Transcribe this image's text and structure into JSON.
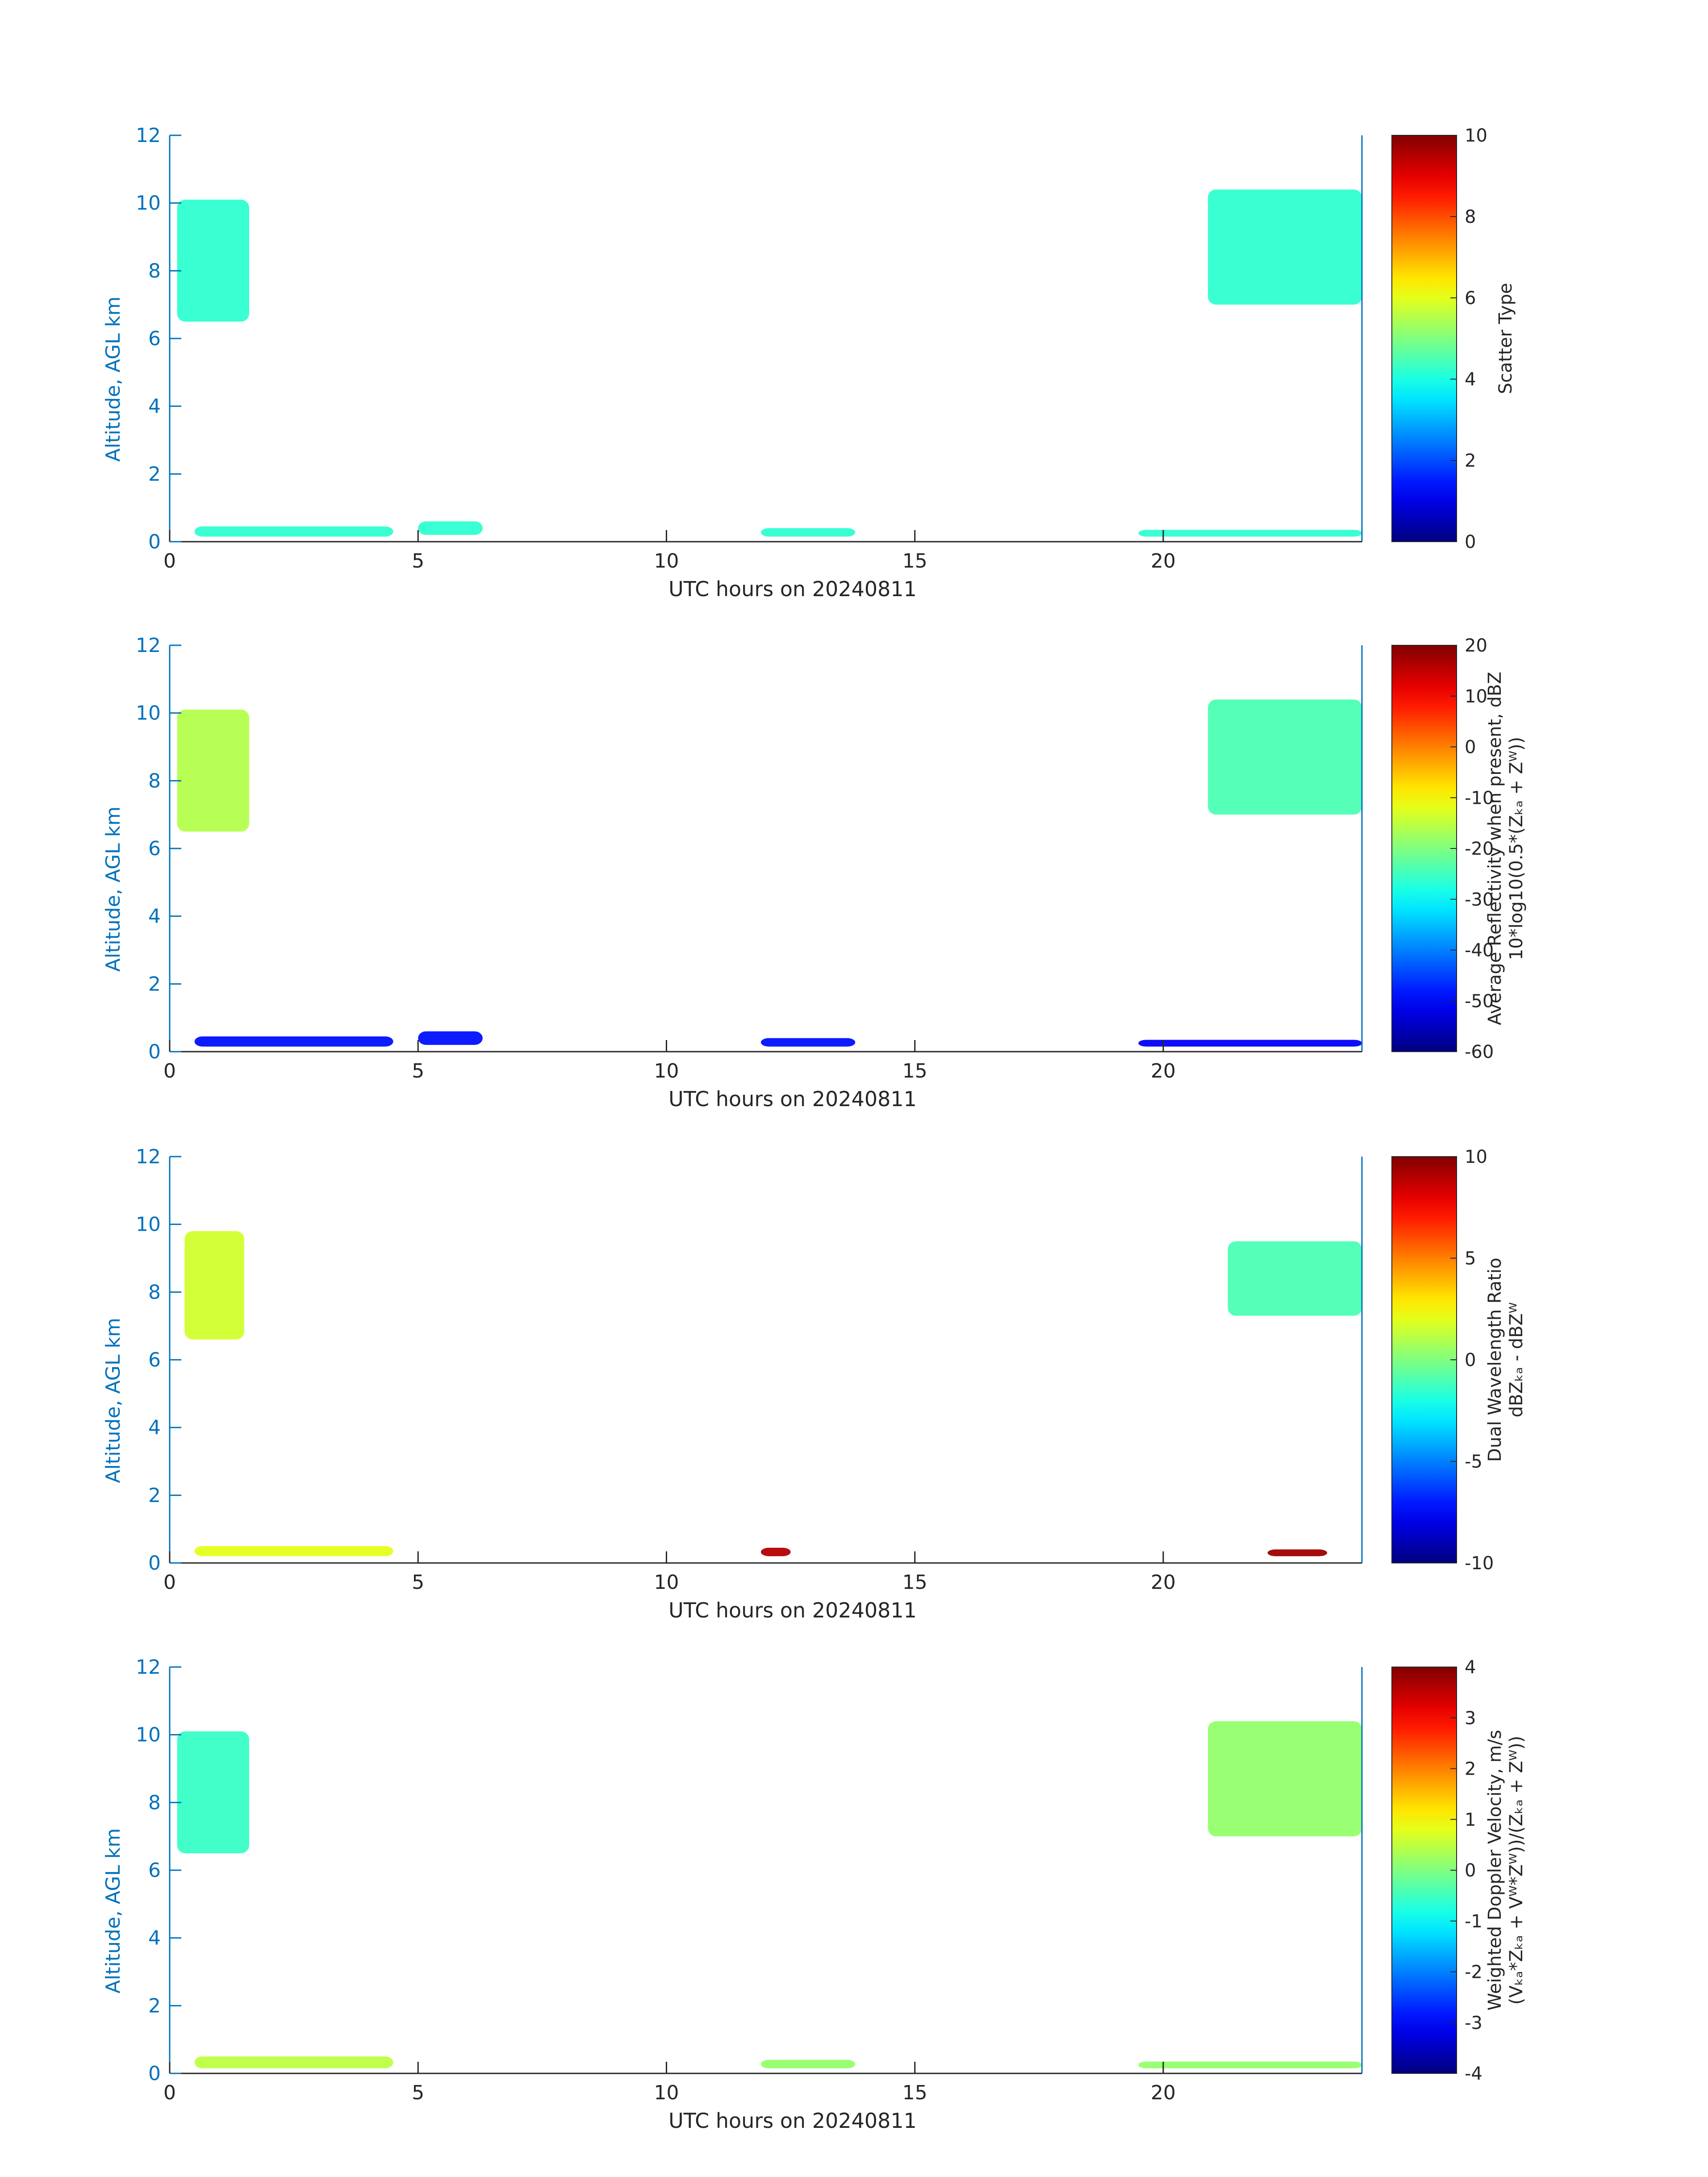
{
  "colors": {
    "axis_blue": "#0072bd",
    "text_dark": "#262626",
    "cloud_cyan": "#40f5d6",
    "deep_blue": "#0a2ee8",
    "pale_green": "#7df29a",
    "yellow_green": "#c8f060",
    "dark_red": "#8b0000"
  },
  "chart_data": [
    {
      "type": "heatmap",
      "title": "",
      "xlabel": "UTC hours on 20240811",
      "ylabel": "Altitude, AGL km",
      "xlim": [
        0,
        24
      ],
      "ylim": [
        0,
        12
      ],
      "x_ticks": [
        "0",
        "5",
        "10",
        "15",
        "20"
      ],
      "y_ticks": [
        "0",
        "2",
        "4",
        "6",
        "8",
        "10",
        "12"
      ],
      "colorbar": {
        "label_lines": [
          "Scatter Type"
        ],
        "range": [
          0,
          10
        ],
        "ticks": [
          "0",
          "2",
          "4",
          "6",
          "8",
          "10"
        ]
      },
      "regions": [
        {
          "t0": 0.15,
          "t1": 1.6,
          "z0": 6.5,
          "z1": 10.1,
          "value_norm": 0.42
        },
        {
          "t0": 20.9,
          "t1": 24.0,
          "z0": 7.0,
          "z1": 10.4,
          "value_norm": 0.42
        },
        {
          "t0": 0.5,
          "t1": 4.5,
          "z0": 0.15,
          "z1": 0.45,
          "value_norm": 0.42
        },
        {
          "t0": 5.0,
          "t1": 6.3,
          "z0": 0.2,
          "z1": 0.6,
          "value_norm": 0.42
        },
        {
          "t0": 11.9,
          "t1": 13.8,
          "z0": 0.15,
          "z1": 0.4,
          "value_norm": 0.42
        },
        {
          "t0": 19.5,
          "t1": 24.0,
          "z0": 0.15,
          "z1": 0.35,
          "value_norm": 0.42
        }
      ]
    },
    {
      "type": "heatmap",
      "title": "",
      "xlabel": "UTC hours on 20240811",
      "ylabel": "Altitude, AGL km",
      "xlim": [
        0,
        24
      ],
      "ylim": [
        0,
        12
      ],
      "x_ticks": [
        "0",
        "5",
        "10",
        "15",
        "20"
      ],
      "y_ticks": [
        "0",
        "2",
        "4",
        "6",
        "8",
        "10",
        "12"
      ],
      "colorbar": {
        "label_lines": [
          "Average Reflectivity when present, dBZ",
          "10*log10(0.5*(Zₖₐ + Zᵂ))"
        ],
        "range": [
          -60,
          20
        ],
        "ticks": [
          "-60",
          "-50",
          "-40",
          "-30",
          "-20",
          "-10",
          "0",
          "10",
          "20"
        ]
      },
      "regions": [
        {
          "t0": 0.15,
          "t1": 1.6,
          "z0": 6.5,
          "z1": 10.1,
          "value_norm": 0.55
        },
        {
          "t0": 20.9,
          "t1": 24.0,
          "z0": 7.0,
          "z1": 10.4,
          "value_norm": 0.45
        },
        {
          "t0": 0.5,
          "t1": 4.5,
          "z0": 0.15,
          "z1": 0.45,
          "value_norm": 0.14
        },
        {
          "t0": 5.0,
          "t1": 6.3,
          "z0": 0.2,
          "z1": 0.6,
          "value_norm": 0.14
        },
        {
          "t0": 11.9,
          "t1": 13.8,
          "z0": 0.15,
          "z1": 0.4,
          "value_norm": 0.14
        },
        {
          "t0": 19.5,
          "t1": 24.0,
          "z0": 0.15,
          "z1": 0.35,
          "value_norm": 0.12
        }
      ]
    },
    {
      "type": "heatmap",
      "title": "",
      "xlabel": "UTC hours on 20240811",
      "ylabel": "Altitude, AGL km",
      "xlim": [
        0,
        24
      ],
      "ylim": [
        0,
        12
      ],
      "x_ticks": [
        "0",
        "5",
        "10",
        "15",
        "20"
      ],
      "y_ticks": [
        "0",
        "2",
        "4",
        "6",
        "8",
        "10",
        "12"
      ],
      "colorbar": {
        "label_lines": [
          "Dual Wavelength Ratio",
          "dBZₖₐ - dBZᵂ"
        ],
        "range": [
          -10,
          10
        ],
        "ticks": [
          "-10",
          "-5",
          "0",
          "5",
          "10"
        ]
      },
      "regions": [
        {
          "t0": 0.3,
          "t1": 1.5,
          "z0": 6.6,
          "z1": 9.8,
          "value_norm": 0.58
        },
        {
          "t0": 21.3,
          "t1": 24.0,
          "z0": 7.3,
          "z1": 9.5,
          "value_norm": 0.45
        },
        {
          "t0": 0.5,
          "t1": 4.5,
          "z0": 0.2,
          "z1": 0.5,
          "value_norm": 0.6
        },
        {
          "t0": 11.9,
          "t1": 12.5,
          "z0": 0.2,
          "z1": 0.45,
          "value_norm": 0.95
        },
        {
          "t0": 22.1,
          "t1": 23.3,
          "z0": 0.2,
          "z1": 0.4,
          "value_norm": 0.97
        }
      ]
    },
    {
      "type": "heatmap",
      "title": "",
      "xlabel": "UTC hours on 20240811",
      "ylabel": "Altitude, AGL km",
      "xlim": [
        0,
        24
      ],
      "ylim": [
        0,
        12
      ],
      "x_ticks": [
        "0",
        "5",
        "10",
        "15",
        "20"
      ],
      "y_ticks": [
        "0",
        "2",
        "4",
        "6",
        "8",
        "10",
        "12"
      ],
      "colorbar": {
        "label_lines": [
          "Weighted Doppler Velocity, m/s",
          "(Vₖₐ*Zₖₐ + Vᵂ*Zᵂ))/(Zₖₐ + Zᵂ))"
        ],
        "range": [
          -4,
          4
        ],
        "ticks": [
          "-4",
          "-3",
          "-2",
          "-1",
          "0",
          "1",
          "2",
          "3",
          "4"
        ]
      },
      "regions": [
        {
          "t0": 0.15,
          "t1": 1.6,
          "z0": 6.5,
          "z1": 10.1,
          "value_norm": 0.43
        },
        {
          "t0": 20.9,
          "t1": 24.0,
          "z0": 7.0,
          "z1": 10.4,
          "value_norm": 0.52
        },
        {
          "t0": 0.5,
          "t1": 4.5,
          "z0": 0.15,
          "z1": 0.5,
          "value_norm": 0.56
        },
        {
          "t0": 11.9,
          "t1": 13.8,
          "z0": 0.15,
          "z1": 0.4,
          "value_norm": 0.52
        },
        {
          "t0": 19.5,
          "t1": 24.0,
          "z0": 0.15,
          "z1": 0.35,
          "value_norm": 0.52
        }
      ]
    }
  ]
}
